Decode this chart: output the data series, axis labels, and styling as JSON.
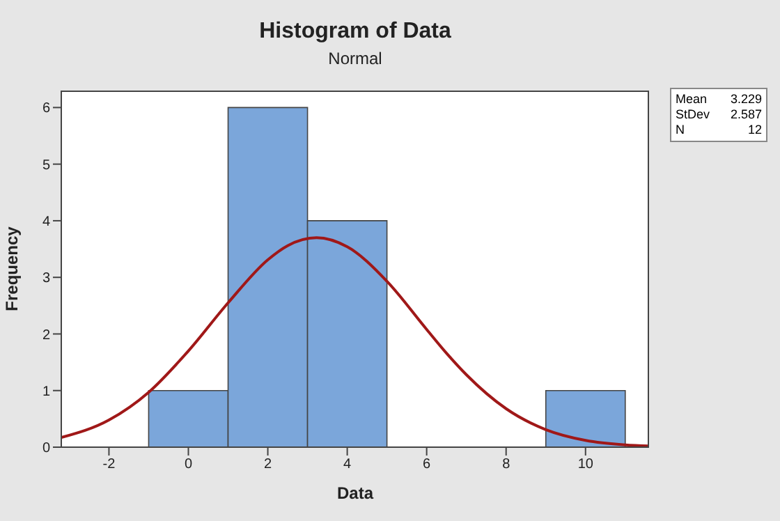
{
  "chart_data": {
    "type": "histogram",
    "title": "Histogram of Data",
    "subtitle": "Normal",
    "xlabel": "Data",
    "ylabel": "Frequency",
    "bins": [
      -1,
      1,
      3,
      5,
      7,
      9,
      11
    ],
    "values": [
      1,
      6,
      4,
      0,
      0,
      1
    ],
    "color": "#7ba6da",
    "series": [
      {
        "type": "line",
        "color": "#a01818",
        "x": [
          -3.2,
          -2,
          -1,
          0,
          1,
          2,
          2.5,
          3.229,
          4,
          5,
          6,
          6.5,
          7,
          8,
          9,
          10,
          11,
          11.6
        ],
        "values": [
          0.17,
          0.48,
          0.97,
          1.7,
          2.55,
          3.31,
          3.56,
          3.7,
          3.54,
          2.93,
          2.08,
          1.66,
          1.28,
          0.68,
          0.31,
          0.12,
          0.04,
          0.02
        ]
      }
    ],
    "xlim": [
      -3.2,
      11.6
    ],
    "xticks": [
      -2,
      0,
      2,
      4,
      6,
      8,
      10
    ],
    "ylim": [
      0,
      6.3
    ],
    "yticks": [
      0,
      1,
      2,
      3,
      4,
      5,
      6
    ],
    "grid": false,
    "annotations": [
      "Mean 3.229",
      "StDev 2.587",
      "N 12"
    ]
  }
}
